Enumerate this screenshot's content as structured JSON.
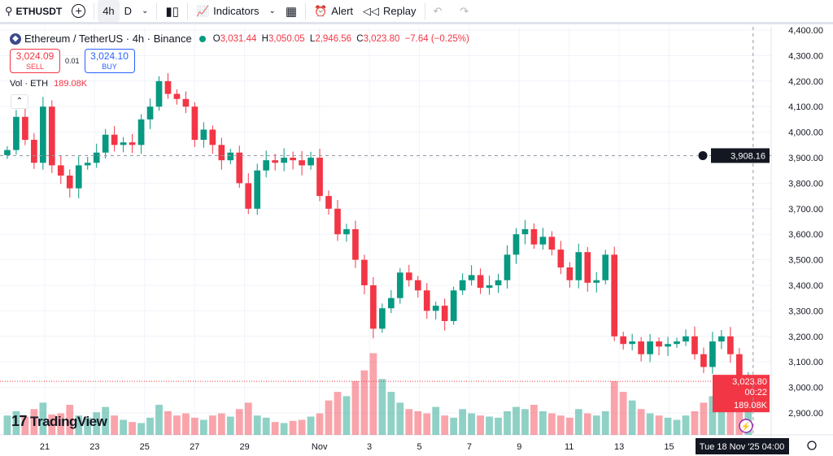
{
  "toolbar": {
    "symbol": "ETHUSDT",
    "tf_4h": "4h",
    "tf_d": "D",
    "indicators": "Indicators",
    "alert": "Alert",
    "replay": "Replay"
  },
  "legend": {
    "title": "Ethereum / TetherUS · 4h · Binance",
    "o_label": "O",
    "o": "3,031.44",
    "h_label": "H",
    "h": "3,050.05",
    "l_label": "L",
    "l": "2,946.56",
    "c_label": "C",
    "c": "3,023.80",
    "change": "−7.64 (−0.25%)"
  },
  "trade": {
    "sell_price": "3,024.09",
    "sell_label": "SELL",
    "spread": "0.01",
    "buy_price": "3,024.10",
    "buy_label": "BUY"
  },
  "volume_legend": {
    "label": "Vol · ETH",
    "value": "189.08K"
  },
  "logo": "TradingView",
  "crosshair": {
    "price_label": "3,908.16",
    "time_label": "Tue 18 Nov '25   04:00"
  },
  "last_price": {
    "price": "3,023.80",
    "countdown": "00:22",
    "volume": "189.08K"
  },
  "colors": {
    "up": "#089981",
    "down": "#f23645"
  },
  "chart_data": {
    "type": "candlestick",
    "title": "Ethereum / TetherUS · 4h · Binance",
    "ylim": [
      2850,
      4420
    ],
    "y_ticks": [
      "4,400.00",
      "4,300.00",
      "4,200.00",
      "4,100.00",
      "4,000.00",
      "3,900.00",
      "3,800.00",
      "3,700.00",
      "3,600.00",
      "3,500.00",
      "3,400.00",
      "3,300.00",
      "3,200.00",
      "3,100.00",
      "3,000.00",
      "2,900.00"
    ],
    "y_tick_values": [
      4400,
      4300,
      4200,
      4100,
      4000,
      3900,
      3800,
      3700,
      3600,
      3500,
      3400,
      3300,
      3200,
      3100,
      3000,
      2900
    ],
    "x_ticks": [
      "21",
      "23",
      "25",
      "27",
      "29",
      "Nov",
      "3",
      "5",
      "7",
      "9",
      "11",
      "13",
      "15"
    ],
    "x_tick_days": [
      21,
      23,
      25,
      27,
      29,
      32,
      34,
      36,
      38,
      40,
      42,
      44,
      46
    ],
    "first_day": 19.5,
    "last_day": 49.17,
    "closes": [
      3930,
      4060,
      3970,
      3880,
      4100,
      3870,
      3830,
      3780,
      3870,
      3880,
      3920,
      3990,
      3950,
      3960,
      3950,
      4050,
      4100,
      4200,
      4150,
      4130,
      4100,
      3970,
      4010,
      3950,
      3890,
      3920,
      3800,
      3700,
      3850,
      3890,
      3880,
      3900,
      3890,
      3870,
      3900,
      3750,
      3700,
      3600,
      3620,
      3500,
      3400,
      3230,
      3310,
      3350,
      3450,
      3420,
      3380,
      3300,
      3320,
      3260,
      3380,
      3420,
      3440,
      3390,
      3400,
      3420,
      3520,
      3600,
      3620,
      3560,
      3590,
      3540,
      3470,
      3420,
      3530,
      3410,
      3420,
      3520,
      3200,
      3170,
      3180,
      3130,
      3180,
      3160,
      3170,
      3180,
      3200,
      3130,
      3080,
      3180,
      3200,
      3130,
      3000,
      3023.8
    ],
    "volumes_k": [
      90,
      110,
      85,
      120,
      150,
      95,
      100,
      140,
      90,
      80,
      105,
      130,
      90,
      70,
      60,
      55,
      80,
      140,
      110,
      90,
      100,
      80,
      70,
      90,
      100,
      85,
      120,
      150,
      90,
      80,
      60,
      55,
      65,
      70,
      85,
      100,
      160,
      200,
      180,
      250,
      300,
      380,
      260,
      200,
      150,
      120,
      110,
      100,
      130,
      90,
      80,
      120,
      100,
      90,
      85,
      80,
      110,
      130,
      120,
      140,
      110,
      100,
      90,
      80,
      120,
      100,
      90,
      110,
      250,
      200,
      160,
      120,
      100,
      90,
      80,
      70,
      90,
      110,
      150,
      180,
      170,
      160,
      150,
      189.08
    ]
  }
}
